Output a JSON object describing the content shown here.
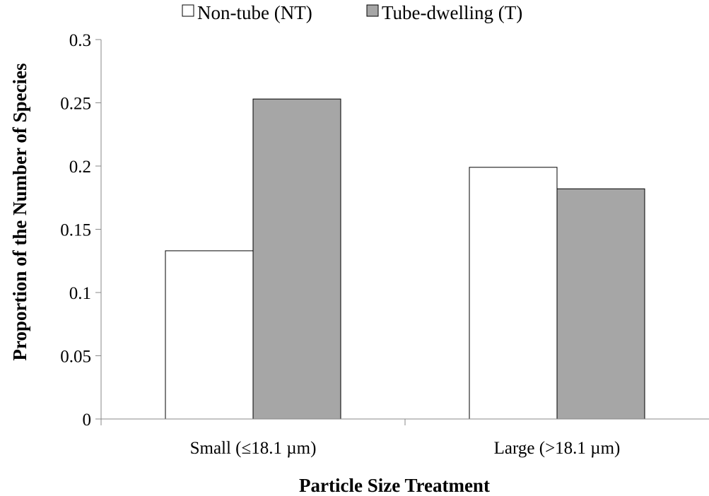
{
  "chart_data": {
    "type": "bar",
    "title": "",
    "xlabel": "Particle Size Treatment",
    "ylabel": "Proportion of the Number of Species",
    "categories": [
      "Small (≤18.1 µm)",
      "Large (>18.1 µm)"
    ],
    "series": [
      {
        "name": "Non-tube (NT)",
        "values": [
          0.133,
          0.199
        ],
        "color": "#ffffff"
      },
      {
        "name": "Tube-dwelling (T)",
        "values": [
          0.253,
          0.182
        ],
        "color": "#a6a6a6"
      }
    ],
    "ylim": [
      0,
      0.3
    ],
    "yticks": [
      "0",
      "0.05",
      "0.1",
      "0.15",
      "0.2",
      "0.25",
      "0.3"
    ],
    "grid": false,
    "legend_position": "top"
  }
}
